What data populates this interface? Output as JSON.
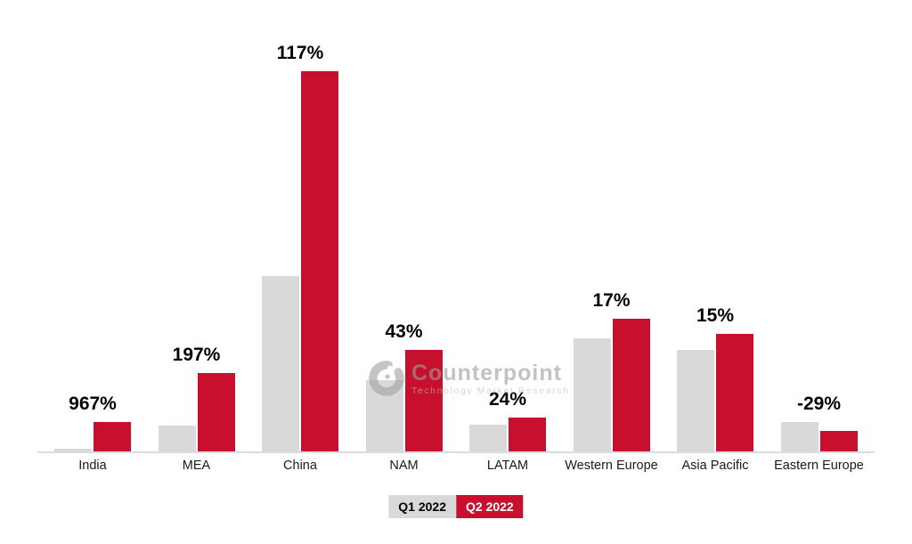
{
  "chart_data": {
    "type": "bar",
    "title": "",
    "xlabel": "",
    "ylabel": "",
    "value_axis_visible": false,
    "grid": false,
    "legend_position": "bottom-center",
    "categories": [
      "India",
      "MEA",
      "China",
      "NAM",
      "LATAM",
      "Western Europe",
      "Asia Pacific",
      "Eastern Europe"
    ],
    "growth_labels": [
      "967%",
      "197%",
      "117%",
      "43%",
      "24%",
      "17%",
      "15%",
      "-29%"
    ],
    "series": [
      {
        "name": "Q1 2022",
        "color": "#D9D9D9",
        "values": [
          3.1,
          29.5,
          197,
          80,
          30.5,
          127,
          114.5,
          33
        ]
      },
      {
        "name": "Q2 2022",
        "color": "#C8102E",
        "values": [
          33.1,
          87.6,
          427.5,
          114.4,
          37.8,
          148.6,
          131.7,
          23.4
        ]
      }
    ],
    "annotation_note": "Values are relative bar heights (no value axis shown); bold labels show Q2 2022 vs Q1 2022 growth percent per region"
  },
  "legend": {
    "q1_label": "Q1 2022",
    "q2_label": "Q2 2022"
  },
  "watermark": {
    "brand": "Counterpoint",
    "tagline": "Technology Market Research"
  },
  "colors": {
    "q1_bar": "#D9D9D9",
    "q2_bar": "#C8102E",
    "axis_line": "#DCDCDC",
    "label_text": "#000000",
    "category_text": "#1a1a1a",
    "legend_q1_text": "#000000",
    "legend_q2_text": "#FFFFFF",
    "watermark_gray": "#9d9d9d",
    "background": "#FFFFFF"
  }
}
